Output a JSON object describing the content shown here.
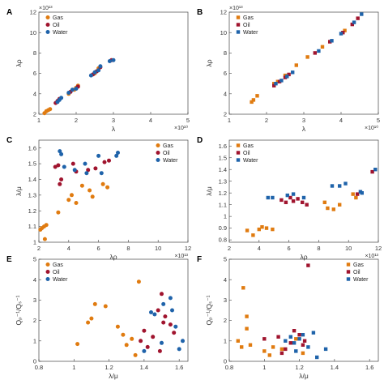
{
  "colors": {
    "gas": "#E07B10",
    "oil": "#A0142E",
    "water": "#1F63AA"
  },
  "chart_data": [
    {
      "panel": "A",
      "type": "scatter",
      "marker": "circle",
      "xlabel": "λ",
      "ylabel": "λρ",
      "xlim": [
        1,
        5
      ],
      "ylim": [
        2,
        12
      ],
      "xticks": [
        "1",
        "2",
        "3",
        "4",
        "5"
      ],
      "yticks": [
        "2",
        "4",
        "6",
        "8",
        "10",
        "12"
      ],
      "x_exponent": "×10¹⁰",
      "y_exponent": "×10¹³",
      "legend": "top-left",
      "grid": false,
      "series": [
        {
          "name": "Gas",
          "key": "gas",
          "points": [
            [
              1.15,
              2.1
            ],
            [
              1.2,
              2.3
            ],
            [
              1.25,
              2.4
            ],
            [
              1.3,
              2.5
            ],
            [
              1.8,
              4.0
            ],
            [
              1.95,
              4.4
            ],
            [
              2.0,
              4.6
            ],
            [
              2.05,
              4.8
            ],
            [
              2.5,
              6.0
            ],
            [
              2.55,
              6.2
            ],
            [
              2.6,
              6.5
            ]
          ]
        },
        {
          "name": "Oil",
          "key": "oil",
          "points": [
            [
              1.45,
              3.1
            ],
            [
              1.5,
              3.3
            ],
            [
              1.55,
              3.5
            ],
            [
              1.85,
              4.2
            ],
            [
              2.05,
              4.7
            ],
            [
              2.45,
              5.9
            ],
            [
              2.55,
              6.2
            ],
            [
              2.65,
              6.6
            ],
            [
              2.95,
              7.3
            ]
          ]
        },
        {
          "name": "Water",
          "key": "water",
          "points": [
            [
              1.5,
              3.2
            ],
            [
              1.55,
              3.4
            ],
            [
              1.6,
              3.6
            ],
            [
              1.8,
              4.1
            ],
            [
              1.9,
              4.4
            ],
            [
              2.0,
              4.5
            ],
            [
              2.4,
              5.8
            ],
            [
              2.5,
              6.1
            ],
            [
              2.6,
              6.3
            ],
            [
              2.65,
              6.7
            ],
            [
              2.9,
              7.2
            ],
            [
              3.0,
              7.3
            ]
          ]
        }
      ]
    },
    {
      "panel": "B",
      "type": "scatter",
      "marker": "square",
      "xlabel": "λ",
      "ylabel": "λρ",
      "xlim": [
        1,
        5
      ],
      "ylim": [
        2,
        12
      ],
      "xticks": [
        "1",
        "2",
        "3",
        "4",
        "5"
      ],
      "yticks": [
        "2",
        "4",
        "6",
        "8",
        "10",
        "12"
      ],
      "x_exponent": "×10¹⁰",
      "y_exponent": "×10¹³",
      "legend": "top-left",
      "grid": false,
      "series": [
        {
          "name": "Gas",
          "key": "gas",
          "points": [
            [
              1.6,
              3.2
            ],
            [
              1.65,
              3.4
            ],
            [
              1.75,
              3.8
            ],
            [
              2.2,
              5.0
            ],
            [
              2.3,
              5.2
            ],
            [
              2.5,
              5.8
            ],
            [
              2.8,
              6.8
            ],
            [
              3.1,
              7.6
            ],
            [
              3.5,
              8.6
            ],
            [
              4.1,
              10.2
            ]
          ]
        },
        {
          "name": "Oil",
          "key": "oil",
          "points": [
            [
              2.2,
              4.8
            ],
            [
              2.35,
              5.2
            ],
            [
              2.5,
              5.6
            ],
            [
              2.6,
              5.9
            ],
            [
              3.3,
              8.0
            ],
            [
              3.7,
              9.1
            ],
            [
              4.05,
              10.0
            ],
            [
              4.3,
              10.8
            ],
            [
              4.45,
              11.4
            ]
          ]
        },
        {
          "name": "Water",
          "key": "water",
          "points": [
            [
              2.25,
              5.0
            ],
            [
              2.4,
              5.3
            ],
            [
              2.55,
              5.7
            ],
            [
              2.7,
              6.1
            ],
            [
              3.4,
              8.2
            ],
            [
              3.75,
              9.2
            ],
            [
              4.0,
              9.9
            ],
            [
              4.35,
              11.0
            ],
            [
              4.55,
              11.8
            ]
          ]
        }
      ]
    },
    {
      "panel": "C",
      "type": "scatter",
      "marker": "circle",
      "xlabel": "λρ",
      "ylabel": "λ/μ",
      "xlim": [
        2,
        12
      ],
      "ylim": [
        1.0,
        1.65
      ],
      "xticks": [
        "2",
        "4",
        "6",
        "8",
        "10",
        "12"
      ],
      "yticks": [
        "1",
        "1.1",
        "1.2",
        "1.3",
        "1.4",
        "1.5",
        "1.6"
      ],
      "x_exponent": "×10¹³",
      "y_exponent": "",
      "legend": "top-right",
      "grid": false,
      "series": [
        {
          "name": "Gas",
          "key": "gas",
          "points": [
            [
              2.1,
              1.08
            ],
            [
              2.2,
              1.09
            ],
            [
              2.35,
              1.1
            ],
            [
              2.5,
              1.11
            ],
            [
              2.4,
              1.02
            ],
            [
              3.3,
              1.19
            ],
            [
              4.0,
              1.27
            ],
            [
              4.2,
              1.3
            ],
            [
              4.5,
              1.25
            ],
            [
              4.9,
              1.36
            ],
            [
              5.4,
              1.33
            ],
            [
              5.6,
              1.29
            ],
            [
              6.3,
              1.37
            ],
            [
              6.6,
              1.35
            ]
          ]
        },
        {
          "name": "Oil",
          "key": "oil",
          "points": [
            [
              3.1,
              1.48
            ],
            [
              3.3,
              1.49
            ],
            [
              3.5,
              1.4
            ],
            [
              3.4,
              1.37
            ],
            [
              4.3,
              1.5
            ],
            [
              4.5,
              1.45
            ],
            [
              5.3,
              1.46
            ],
            [
              5.8,
              1.47
            ],
            [
              6.4,
              1.51
            ],
            [
              6.7,
              1.52
            ]
          ]
        },
        {
          "name": "Water",
          "key": "water",
          "points": [
            [
              3.4,
              1.58
            ],
            [
              3.5,
              1.56
            ],
            [
              3.7,
              1.48
            ],
            [
              4.4,
              1.46
            ],
            [
              5.1,
              1.5
            ],
            [
              5.2,
              1.44
            ],
            [
              6.0,
              1.55
            ],
            [
              6.2,
              1.44
            ],
            [
              7.2,
              1.55
            ],
            [
              7.3,
              1.57
            ]
          ]
        }
      ]
    },
    {
      "panel": "D",
      "type": "scatter",
      "marker": "square",
      "xlabel": "λρ",
      "ylabel": "λ/μ",
      "xlim": [
        2,
        12
      ],
      "ylim": [
        0.78,
        1.65
      ],
      "xticks": [
        "2",
        "4",
        "6",
        "8",
        "10",
        "12"
      ],
      "yticks": [
        "0.8",
        "0.9",
        "1",
        "1.1",
        "1.2",
        "1.3",
        "1.4",
        "1.5",
        "1.6"
      ],
      "x_exponent": "×10¹³",
      "y_exponent": "",
      "legend": "top-left",
      "grid": false,
      "series": [
        {
          "name": "Gas",
          "key": "gas",
          "points": [
            [
              3.2,
              0.88
            ],
            [
              3.6,
              0.84
            ],
            [
              4.0,
              0.89
            ],
            [
              4.2,
              0.91
            ],
            [
              4.5,
              0.9
            ],
            [
              4.9,
              0.89
            ],
            [
              8.4,
              1.12
            ],
            [
              8.6,
              1.07
            ],
            [
              9.0,
              1.06
            ],
            [
              9.4,
              1.1
            ],
            [
              10.3,
              1.19
            ],
            [
              10.5,
              1.16
            ]
          ]
        },
        {
          "name": "Oil",
          "key": "oil",
          "points": [
            [
              5.5,
              1.14
            ],
            [
              5.8,
              1.12
            ],
            [
              6.1,
              1.16
            ],
            [
              6.3,
              1.13
            ],
            [
              6.6,
              1.15
            ],
            [
              6.9,
              1.12
            ],
            [
              7.2,
              1.1
            ],
            [
              10.6,
              1.19
            ],
            [
              11.6,
              1.38
            ]
          ]
        },
        {
          "name": "Water",
          "key": "water",
          "points": [
            [
              4.6,
              1.16
            ],
            [
              4.9,
              1.16
            ],
            [
              5.9,
              1.18
            ],
            [
              6.3,
              1.19
            ],
            [
              7.0,
              1.16
            ],
            [
              8.9,
              1.26
            ],
            [
              9.4,
              1.26
            ],
            [
              9.8,
              1.28
            ],
            [
              10.8,
              1.21
            ],
            [
              10.9,
              1.2
            ],
            [
              11.8,
              1.4
            ]
          ]
        }
      ]
    },
    {
      "panel": "E",
      "type": "scatter",
      "marker": "circle",
      "xlabel": "λ/μ",
      "ylabel": "Qₚ⁻¹/Qₛ⁻¹",
      "xlim": [
        0.8,
        1.65
      ],
      "ylim": [
        0,
        5
      ],
      "xticks": [
        "0.8",
        "1",
        "1.2",
        "1.4",
        "1.6"
      ],
      "yticks": [
        "0",
        "1",
        "2",
        "3",
        "4",
        "5"
      ],
      "x_exponent": "",
      "y_exponent": "",
      "legend": "top-left",
      "grid": false,
      "series": [
        {
          "name": "Gas",
          "key": "gas",
          "points": [
            [
              1.02,
              0.85
            ],
            [
              1.08,
              1.9
            ],
            [
              1.1,
              2.1
            ],
            [
              1.12,
              2.8
            ],
            [
              1.18,
              2.7
            ],
            [
              1.25,
              1.7
            ],
            [
              1.28,
              1.3
            ],
            [
              1.3,
              0.8
            ],
            [
              1.33,
              1.1
            ],
            [
              1.35,
              0.3
            ],
            [
              1.37,
              3.9
            ]
          ]
        },
        {
          "name": "Oil",
          "key": "oil",
          "points": [
            [
              1.38,
              1.0
            ],
            [
              1.4,
              1.5
            ],
            [
              1.42,
              0.7
            ],
            [
              1.45,
              1.2
            ],
            [
              1.48,
              2.5
            ],
            [
              1.49,
              0.5
            ],
            [
              1.5,
              3.3
            ],
            [
              1.51,
              1.9
            ],
            [
              1.52,
              2.2
            ],
            [
              1.55,
              1.8
            ],
            [
              1.57,
              1.4
            ]
          ]
        },
        {
          "name": "Water",
          "key": "water",
          "points": [
            [
              1.4,
              0.5
            ],
            [
              1.44,
              2.4
            ],
            [
              1.46,
              2.3
            ],
            [
              1.5,
              0.9
            ],
            [
              1.51,
              2.8
            ],
            [
              1.55,
              3.1
            ],
            [
              1.56,
              2.5
            ],
            [
              1.58,
              1.7
            ],
            [
              1.6,
              0.6
            ],
            [
              1.62,
              1.0
            ]
          ]
        }
      ]
    },
    {
      "panel": "F",
      "type": "scatter",
      "marker": "square",
      "xlabel": "λ/μ",
      "ylabel": "Qₚ⁻¹/Qₛ⁻¹",
      "xlim": [
        0.8,
        1.65
      ],
      "ylim": [
        0,
        5
      ],
      "xticks": [
        "0.8",
        "1",
        "1.2",
        "1.4",
        "1.6"
      ],
      "yticks": [
        "0",
        "1",
        "2",
        "3",
        "4",
        "5"
      ],
      "x_exponent": "",
      "y_exponent": "",
      "legend": "top-right",
      "grid": false,
      "series": [
        {
          "name": "Gas",
          "key": "gas",
          "points": [
            [
              0.85,
              1.0
            ],
            [
              0.87,
              0.7
            ],
            [
              0.88,
              3.6
            ],
            [
              0.9,
              2.2
            ],
            [
              0.9,
              1.6
            ],
            [
              0.92,
              0.8
            ],
            [
              1.0,
              0.5
            ],
            [
              1.03,
              0.3
            ],
            [
              1.05,
              0.7
            ],
            [
              1.1,
              0.6
            ],
            [
              1.18,
              1.1
            ],
            [
              1.22,
              0.4
            ]
          ]
        },
        {
          "name": "Oil",
          "key": "oil",
          "points": [
            [
              1.0,
              1.1
            ],
            [
              1.08,
              1.2
            ],
            [
              1.1,
              0.4
            ],
            [
              1.12,
              0.6
            ],
            [
              1.15,
              0.9
            ],
            [
              1.17,
              1.5
            ],
            [
              1.2,
              1.3
            ],
            [
              1.22,
              0.8
            ],
            [
              1.23,
              1.0
            ],
            [
              1.25,
              4.7
            ]
          ]
        },
        {
          "name": "Water",
          "key": "water",
          "points": [
            [
              1.12,
              1.0
            ],
            [
              1.15,
              1.2
            ],
            [
              1.17,
              0.9
            ],
            [
              1.18,
              0.5
            ],
            [
              1.2,
              1.1
            ],
            [
              1.22,
              1.3
            ],
            [
              1.25,
              0.7
            ],
            [
              1.28,
              1.4
            ],
            [
              1.3,
              0.2
            ],
            [
              1.35,
              0.6
            ]
          ]
        }
      ]
    }
  ]
}
